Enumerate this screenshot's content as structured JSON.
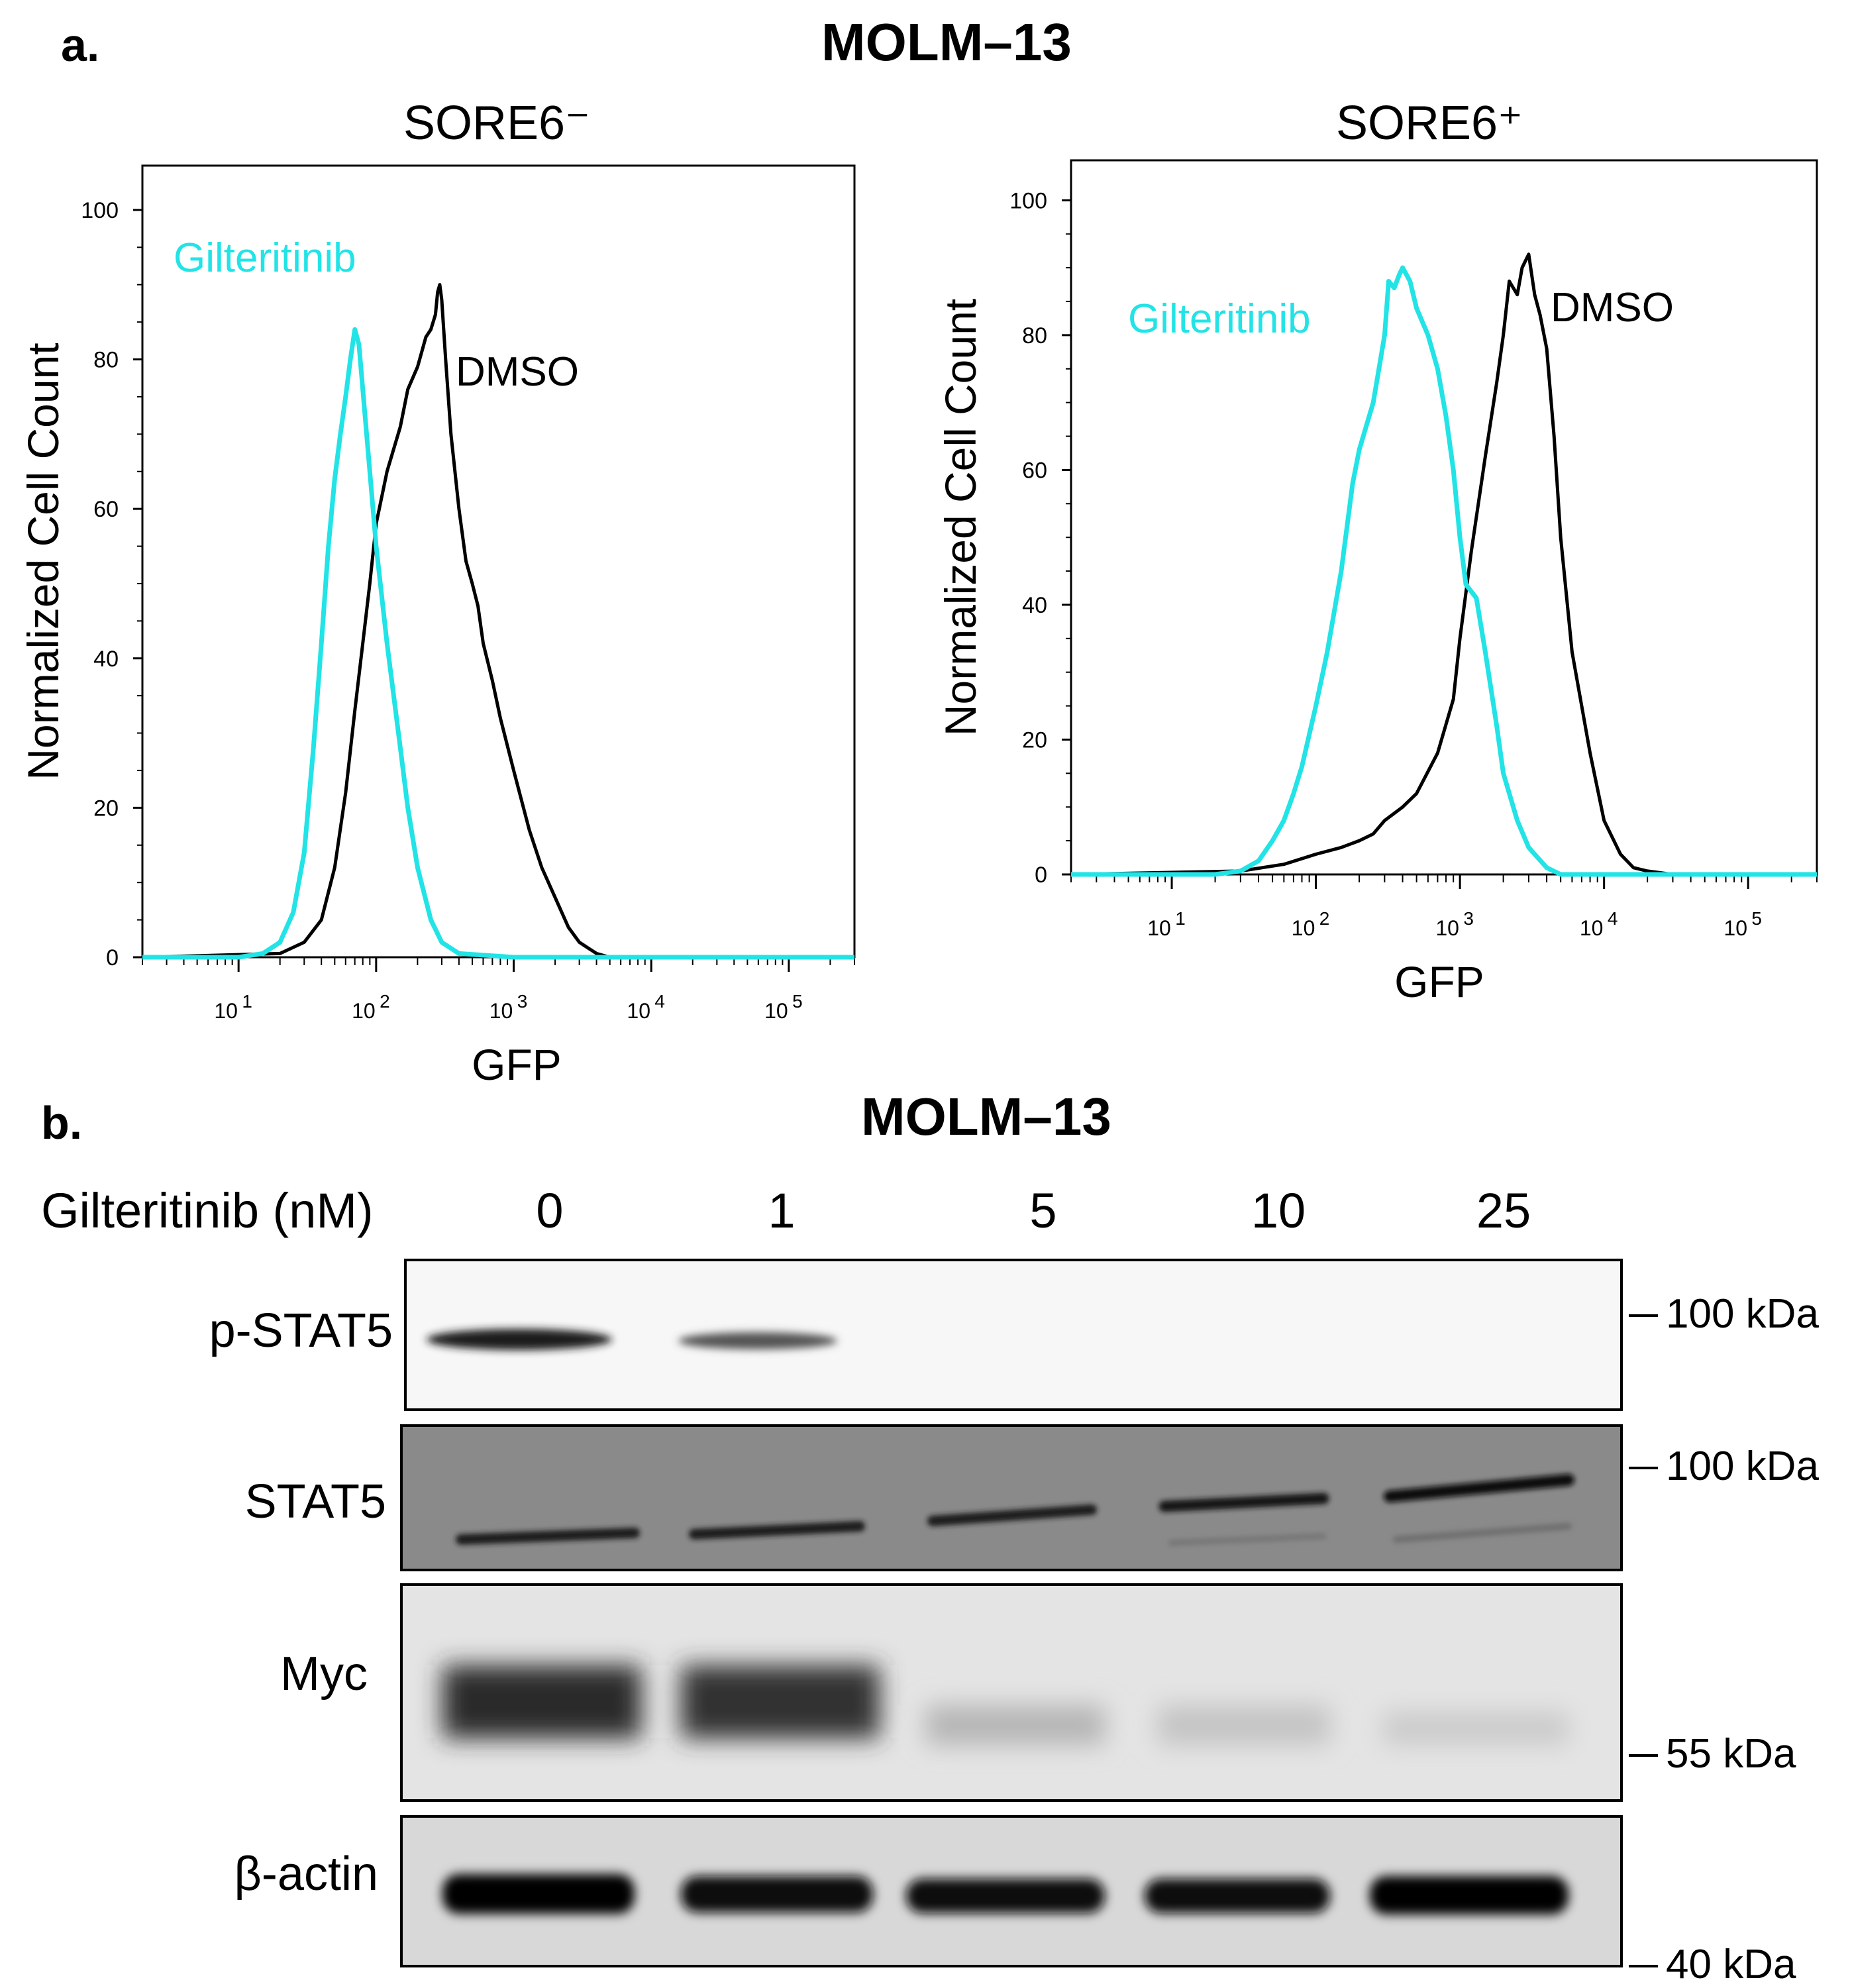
{
  "panel_a": {
    "letter": "a.",
    "title": "MOLM–13",
    "plots": [
      {
        "id": "sore6_neg",
        "title": "SORE6⁻"
      },
      {
        "id": "sore6_pos",
        "title": "SORE6⁺"
      }
    ]
  },
  "panel_b": {
    "letter": "b.",
    "title": "MOLM–13",
    "dose_label": "Gilteritinib (nM)",
    "doses": [
      "0",
      "1",
      "5",
      "10",
      "25"
    ],
    "rows": [
      {
        "label": "p-STAT5",
        "marker": "100 kDa"
      },
      {
        "label": "STAT5",
        "marker": "100 kDa"
      },
      {
        "label": "Myc",
        "marker": "55 kDa"
      },
      {
        "label": "β-actin",
        "marker": "40 kDa"
      }
    ]
  },
  "chart_data": [
    {
      "type": "line",
      "title": "SORE6⁻",
      "xlabel": "GFP",
      "ylabel": "Normalized Cell Count",
      "x_scale": "log",
      "xlim": [
        2,
        300000
      ],
      "ylim": [
        0,
        100
      ],
      "y_ticks": [
        0,
        20,
        40,
        60,
        80,
        100
      ],
      "x_ticks": [
        "10^1",
        "10^2",
        "10^3",
        "10^4",
        "10^5"
      ],
      "grid": false,
      "series": [
        {
          "name": "Gilteritinib",
          "color": "#22e3e6",
          "x": [
            2,
            10,
            15,
            20,
            25,
            30,
            35,
            40,
            45,
            50,
            55,
            60,
            65,
            70,
            75,
            80,
            90,
            100,
            120,
            150,
            170,
            200,
            250,
            300,
            400,
            1000,
            300000
          ],
          "y": [
            0,
            0,
            0.5,
            2,
            6,
            14,
            28,
            42,
            55,
            64,
            70,
            75,
            80,
            84,
            82,
            76,
            65,
            55,
            42,
            28,
            20,
            12,
            5,
            2,
            0.5,
            0,
            0
          ]
        },
        {
          "name": "DMSO",
          "color": "#000000",
          "x": [
            2,
            20,
            30,
            40,
            50,
            60,
            70,
            80,
            90,
            100,
            120,
            150,
            170,
            200,
            230,
            250,
            270,
            280,
            290,
            300,
            320,
            350,
            400,
            450,
            500,
            550,
            600,
            700,
            800,
            1000,
            1300,
            1600,
            2000,
            2500,
            3000,
            4000,
            5000,
            300000
          ],
          "y": [
            0,
            0.5,
            2,
            5,
            12,
            22,
            33,
            42,
            50,
            58,
            65,
            71,
            76,
            79,
            83,
            84,
            86,
            89,
            90,
            88,
            80,
            70,
            60,
            53,
            50,
            47,
            42,
            37,
            32,
            25,
            17,
            12,
            8,
            4,
            2,
            0.5,
            0,
            0
          ]
        }
      ]
    },
    {
      "type": "line",
      "title": "SORE6⁺",
      "xlabel": "GFP",
      "ylabel": "Normalized Cell Count",
      "x_scale": "log",
      "xlim": [
        2,
        300000
      ],
      "ylim": [
        0,
        100
      ],
      "y_ticks": [
        0,
        20,
        40,
        60,
        80,
        100
      ],
      "x_ticks": [
        "10^1",
        "10^2",
        "10^3",
        "10^4",
        "10^5"
      ],
      "grid": false,
      "series": [
        {
          "name": "Gilteritinib",
          "color": "#22e3e6",
          "x": [
            2,
            20,
            30,
            40,
            50,
            60,
            70,
            80,
            100,
            120,
            150,
            180,
            200,
            250,
            300,
            320,
            350,
            380,
            400,
            450,
            500,
            600,
            700,
            800,
            900,
            1000,
            1100,
            1300,
            1500,
            1800,
            2000,
            2500,
            3000,
            4000,
            5000,
            300000
          ],
          "y": [
            0,
            0,
            0.5,
            2,
            5,
            8,
            12,
            16,
            25,
            33,
            45,
            58,
            63,
            70,
            80,
            88,
            87,
            89,
            90,
            88,
            84,
            80,
            75,
            68,
            60,
            50,
            43,
            41,
            33,
            22,
            15,
            8,
            4,
            1,
            0,
            0
          ]
        },
        {
          "name": "DMSO",
          "color": "#000000",
          "x": [
            2,
            30,
            60,
            100,
            150,
            200,
            250,
            300,
            400,
            500,
            700,
            900,
            1000,
            1200,
            1500,
            1800,
            2000,
            2200,
            2500,
            2700,
            3000,
            3300,
            3600,
            4000,
            4500,
            5000,
            6000,
            8000,
            10000,
            13000,
            16000,
            20000,
            30000,
            300000
          ],
          "y": [
            0,
            0.5,
            1.5,
            3,
            4,
            5,
            6,
            8,
            10,
            12,
            18,
            26,
            35,
            48,
            62,
            73,
            80,
            88,
            86,
            90,
            92,
            86,
            83,
            78,
            65,
            50,
            33,
            18,
            8,
            3,
            1,
            0.5,
            0,
            0
          ]
        }
      ]
    }
  ],
  "series_labels": {
    "treatment": "Gilteritinib",
    "control": "DMSO"
  },
  "tick_labels": {
    "base": "10",
    "exponents": [
      "1",
      "2",
      "3",
      "4",
      "5"
    ],
    "y": [
      "0",
      "20",
      "40",
      "60",
      "80",
      "100"
    ]
  }
}
